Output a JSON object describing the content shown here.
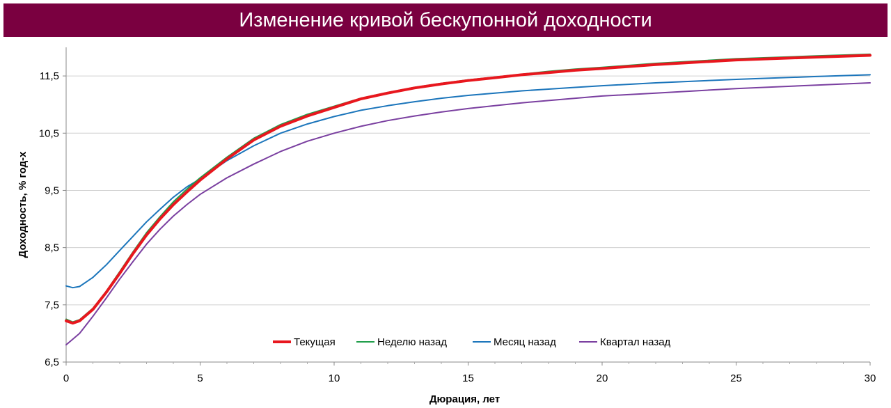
{
  "chart_data": {
    "type": "line",
    "title": "Изменение кривой бескупонной доходности",
    "xlabel": "Дюрация, лет",
    "ylabel": "Доходность, % год-х",
    "xlim": [
      0,
      30
    ],
    "ylim": [
      6.5,
      12.0
    ],
    "xticks": [
      0,
      5,
      10,
      15,
      20,
      25,
      30
    ],
    "yticks": [
      6.5,
      7.5,
      8.5,
      9.5,
      10.5,
      11.5
    ],
    "ytick_labels": [
      "6,5",
      "7,5",
      "8,5",
      "9,5",
      "10,5",
      "11,5"
    ],
    "grid": "horizontal",
    "legend_position": "bottom-center inside plot",
    "series": [
      {
        "name": "Текущая",
        "color": "#e8171e",
        "x": [
          0,
          0.25,
          0.5,
          1,
          1.5,
          2,
          2.5,
          3,
          3.5,
          4,
          4.5,
          5,
          6,
          7,
          8,
          9,
          10,
          11,
          12,
          13,
          14,
          15,
          16,
          17,
          18,
          19,
          20,
          22,
          25,
          28,
          30
        ],
        "y": [
          7.22,
          7.18,
          7.22,
          7.42,
          7.72,
          8.05,
          8.4,
          8.72,
          9.0,
          9.25,
          9.47,
          9.68,
          10.05,
          10.38,
          10.62,
          10.8,
          10.95,
          11.1,
          11.2,
          11.29,
          11.36,
          11.42,
          11.47,
          11.52,
          11.56,
          11.6,
          11.63,
          11.7,
          11.78,
          11.83,
          11.86
        ]
      },
      {
        "name": "Неделю назад",
        "color": "#1f9e4a",
        "x": [
          0,
          0.25,
          0.5,
          1,
          1.5,
          2,
          2.5,
          3,
          3.5,
          4,
          4.5,
          5,
          6,
          7,
          8,
          9,
          10,
          11,
          12,
          13,
          14,
          15,
          16,
          17,
          18,
          19,
          20,
          22,
          25,
          28,
          30
        ],
        "y": [
          7.25,
          7.2,
          7.24,
          7.44,
          7.74,
          8.08,
          8.43,
          8.76,
          9.04,
          9.3,
          9.52,
          9.72,
          10.08,
          10.41,
          10.65,
          10.83,
          10.97,
          11.11,
          11.21,
          11.3,
          11.37,
          11.43,
          11.48,
          11.53,
          11.58,
          11.62,
          11.65,
          11.72,
          11.8,
          11.85,
          11.88
        ]
      },
      {
        "name": "Месяц назад",
        "color": "#1b75bb",
        "x": [
          0,
          0.25,
          0.5,
          1,
          1.5,
          2,
          2.5,
          3,
          3.5,
          4,
          4.5,
          5,
          6,
          7,
          8,
          9,
          10,
          11,
          12,
          13,
          14,
          15,
          16,
          17,
          18,
          19,
          20,
          22,
          25,
          28,
          30
        ],
        "y": [
          7.83,
          7.8,
          7.82,
          7.98,
          8.2,
          8.45,
          8.7,
          8.95,
          9.17,
          9.38,
          9.56,
          9.7,
          10.02,
          10.28,
          10.5,
          10.66,
          10.79,
          10.9,
          10.98,
          11.05,
          11.11,
          11.16,
          11.2,
          11.24,
          11.27,
          11.3,
          11.33,
          11.38,
          11.44,
          11.49,
          11.52
        ]
      },
      {
        "name": "Квартал назад",
        "color": "#7a3fa0",
        "x": [
          0,
          0.25,
          0.5,
          1,
          1.5,
          2,
          2.5,
          3,
          3.5,
          4,
          4.5,
          5,
          6,
          7,
          8,
          9,
          10,
          11,
          12,
          13,
          14,
          15,
          16,
          17,
          18,
          19,
          20,
          22,
          25,
          28,
          30
        ],
        "y": [
          6.8,
          6.9,
          7.0,
          7.3,
          7.62,
          7.95,
          8.26,
          8.56,
          8.82,
          9.05,
          9.25,
          9.43,
          9.72,
          9.96,
          10.18,
          10.36,
          10.5,
          10.62,
          10.72,
          10.8,
          10.87,
          10.93,
          10.98,
          11.03,
          11.07,
          11.11,
          11.15,
          11.2,
          11.28,
          11.34,
          11.38
        ]
      }
    ]
  }
}
